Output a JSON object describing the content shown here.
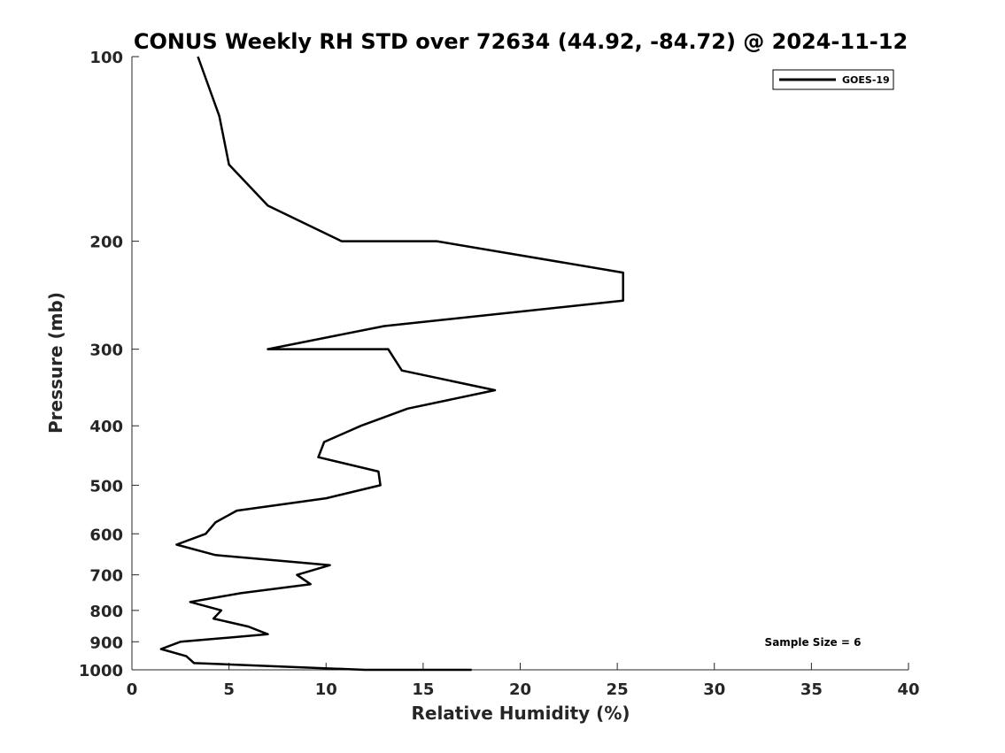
{
  "chart_data": {
    "type": "line",
    "title": "CONUS Weekly RH STD over 72634 (44.92, -84.72) @ 2024-11-12",
    "xlabel": "Relative Humidity (%)",
    "ylabel": "Pressure (mb)",
    "xlim": [
      0,
      40
    ],
    "ylim": [
      100,
      1000
    ],
    "y_scale": "log",
    "y_reversed": true,
    "x_ticks": [
      0,
      5,
      10,
      15,
      20,
      25,
      30,
      35,
      40
    ],
    "x_tick_labels": [
      "0",
      "5",
      "10",
      "15",
      "20",
      "25",
      "30",
      "35",
      "40"
    ],
    "y_ticks": [
      100,
      200,
      300,
      400,
      500,
      600,
      700,
      800,
      900,
      1000
    ],
    "y_tick_labels": [
      "100",
      "200",
      "300",
      "400",
      "500",
      "600",
      "700",
      "800",
      "900",
      "1000"
    ],
    "grid": false,
    "legend": {
      "placement": "top-right",
      "entries": [
        "GOES-19"
      ]
    },
    "annotation": "Sample Size = 6",
    "series": [
      {
        "name": "GOES-19",
        "color": "#000000",
        "points": [
          [
            3.4,
            100
          ],
          [
            4.5,
            125
          ],
          [
            5.0,
            150
          ],
          [
            7.0,
            175
          ],
          [
            10.8,
            200
          ],
          [
            15.7,
            200
          ],
          [
            25.3,
            225
          ],
          [
            25.3,
            250
          ],
          [
            13.0,
            275
          ],
          [
            7.0,
            300
          ],
          [
            13.2,
            300
          ],
          [
            13.9,
            325
          ],
          [
            18.7,
            350
          ],
          [
            14.2,
            375
          ],
          [
            11.8,
            400
          ],
          [
            9.9,
            425
          ],
          [
            9.6,
            450
          ],
          [
            12.7,
            475
          ],
          [
            12.8,
            500
          ],
          [
            10.0,
            525
          ],
          [
            5.4,
            550
          ],
          [
            4.3,
            575
          ],
          [
            3.8,
            600
          ],
          [
            2.3,
            625
          ],
          [
            4.3,
            650
          ],
          [
            10.2,
            675
          ],
          [
            8.5,
            700
          ],
          [
            9.2,
            725
          ],
          [
            5.6,
            750
          ],
          [
            3.0,
            775
          ],
          [
            4.6,
            800
          ],
          [
            4.2,
            825
          ],
          [
            6.0,
            850
          ],
          [
            7.0,
            875
          ],
          [
            2.5,
            900
          ],
          [
            1.5,
            925
          ],
          [
            2.8,
            950
          ],
          [
            3.2,
            975
          ],
          [
            12.0,
            1000
          ],
          [
            17.5,
            1000
          ]
        ]
      }
    ]
  }
}
